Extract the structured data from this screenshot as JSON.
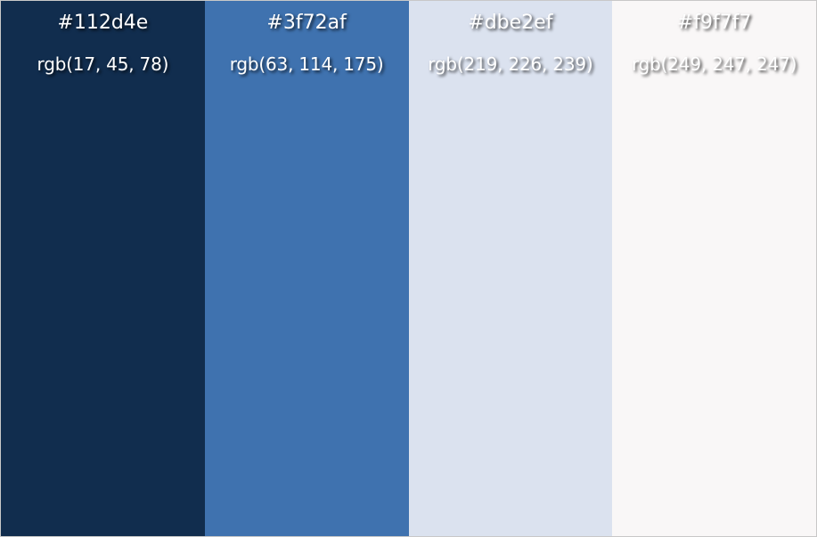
{
  "palette": {
    "swatches": [
      {
        "hex": "#112d4e",
        "rgb": "rgb(17, 45, 78)",
        "color": "#112d4e"
      },
      {
        "hex": "#3f72af",
        "rgb": "rgb(63, 114, 175)",
        "color": "#3f72af"
      },
      {
        "hex": "#dbe2ef",
        "rgb": "rgb(219, 226, 239)",
        "color": "#dbe2ef"
      },
      {
        "hex": "#f9f7f7",
        "rgb": "rgb(249, 247, 247)",
        "color": "#f9f7f7"
      }
    ]
  }
}
